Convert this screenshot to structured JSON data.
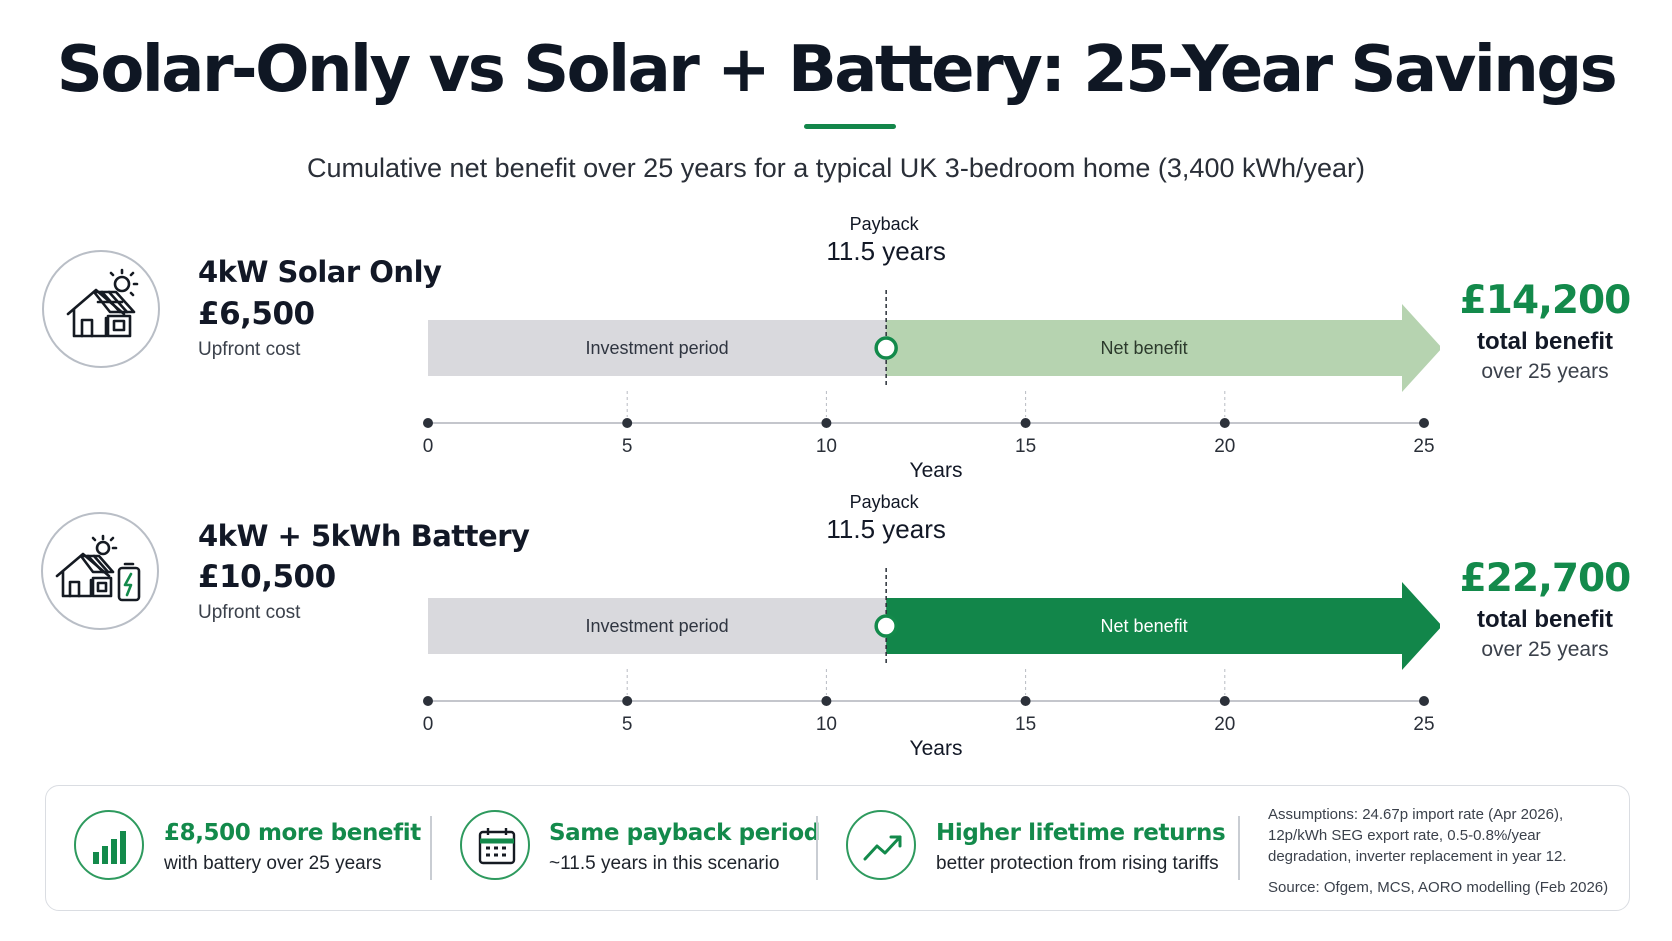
{
  "title": "Solar-Only vs Solar + Battery: 25-Year Savings",
  "subtitle": "Cumulative net benefit over 25 years for a typical UK 3-bedroom home (3,400 kWh/year)",
  "colors": {
    "investment": "#d9d9dd",
    "solar_benefit": "#b6d3b0",
    "battery_benefit": "#12864a",
    "accent": "#138a4b"
  },
  "chart_data": [
    {
      "type": "area",
      "scenario": "4kW Solar Only",
      "upfront_cost": "£6,500",
      "upfront_label": "Upfront cost",
      "payback_label": "Payback",
      "payback_value_label": "11.5 years",
      "payback_years": 11.5,
      "segments": [
        {
          "label": "Investment period",
          "from": 0,
          "to": 11.5
        },
        {
          "label": "Net benefit",
          "from": 11.5,
          "to": 25
        }
      ],
      "x_ticks": [
        0,
        5,
        10,
        15,
        20,
        25
      ],
      "x_range": [
        0,
        25
      ],
      "xlabel": "Years",
      "total_benefit": "£14,200",
      "total_label": "total benefit",
      "total_sub": "over 25 years"
    },
    {
      "type": "area",
      "scenario": "4kW + 5kWh Battery",
      "upfront_cost": "£10,500",
      "upfront_label": "Upfront cost",
      "payback_label": "Payback",
      "payback_value_label": "11.5 years",
      "payback_years": 11.5,
      "segments": [
        {
          "label": "Investment period",
          "from": 0,
          "to": 11.5
        },
        {
          "label": "Net benefit",
          "from": 11.5,
          "to": 25
        }
      ],
      "x_ticks": [
        0,
        5,
        10,
        15,
        20,
        25
      ],
      "x_range": [
        0,
        25
      ],
      "xlabel": "Years",
      "total_benefit": "£22,700",
      "total_label": "total benefit",
      "total_sub": "over 25 years"
    }
  ],
  "icons": {
    "solar_home": "house-with-solar-panel-icon",
    "battery_home": "house-with-battery-icon",
    "bar_chart": "bar-chart-icon",
    "calendar": "calendar-icon",
    "trend": "trend-up-icon"
  },
  "summary": {
    "items": [
      {
        "heading": "£8,500 more benefit",
        "text": "with battery over 25 years"
      },
      {
        "heading": "Same payback period",
        "text": "~11.5 years in this scenario"
      },
      {
        "heading": "Higher lifetime returns",
        "text": "better protection from rising tariffs"
      }
    ],
    "assumptions": "Assumptions: 24.67p import rate (Apr 2026), 12p/kWh SEG export rate, 0.5-0.8%/year degradation, inverter replacement in year 12.",
    "source": "Source: Ofgem, MCS, AORO modelling (Feb 2026)"
  }
}
